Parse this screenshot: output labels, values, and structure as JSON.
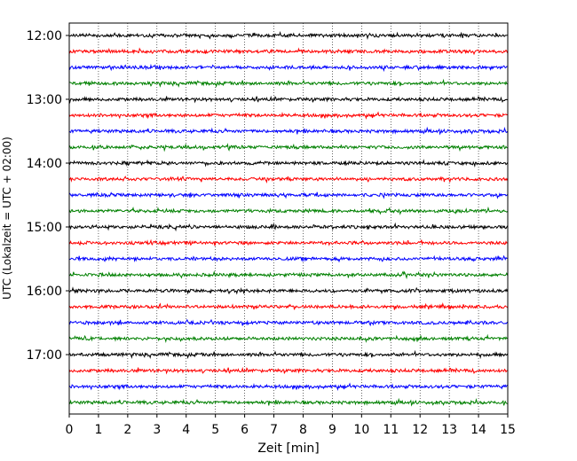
{
  "chart_data": {
    "type": "line",
    "title": "",
    "xlabel": "Zeit  [min]",
    "ylabel": "UTC (Lokalzeit = UTC + 02:00)",
    "xlim": [
      0,
      15
    ],
    "x_ticks": [
      0,
      1,
      2,
      3,
      4,
      5,
      6,
      7,
      8,
      9,
      10,
      11,
      12,
      13,
      14,
      15
    ],
    "x_tick_labels": [
      "0",
      "1",
      "2",
      "3",
      "4",
      "5",
      "6",
      "7",
      "8",
      "9",
      "10",
      "11",
      "12",
      "13",
      "14",
      "15"
    ],
    "y_tick_labels": [
      "12:00",
      "13:00",
      "14:00",
      "15:00",
      "16:00",
      "17:00"
    ],
    "row_minutes": 15,
    "grid": "vertical dotted at each minute",
    "legend": "none",
    "color_cycle": [
      "#000000",
      "#ff0000",
      "#0000ff",
      "#008000"
    ],
    "rows": [
      "12:00",
      "12:15",
      "12:30",
      "12:45",
      "13:00",
      "13:15",
      "13:30",
      "13:45",
      "14:00",
      "14:15",
      "14:30",
      "14:45",
      "15:00",
      "15:15",
      "15:30",
      "15:45",
      "16:00",
      "16:15",
      "16:30",
      "16:45",
      "17:00",
      "17:15",
      "17:30",
      "17:45"
    ]
  }
}
